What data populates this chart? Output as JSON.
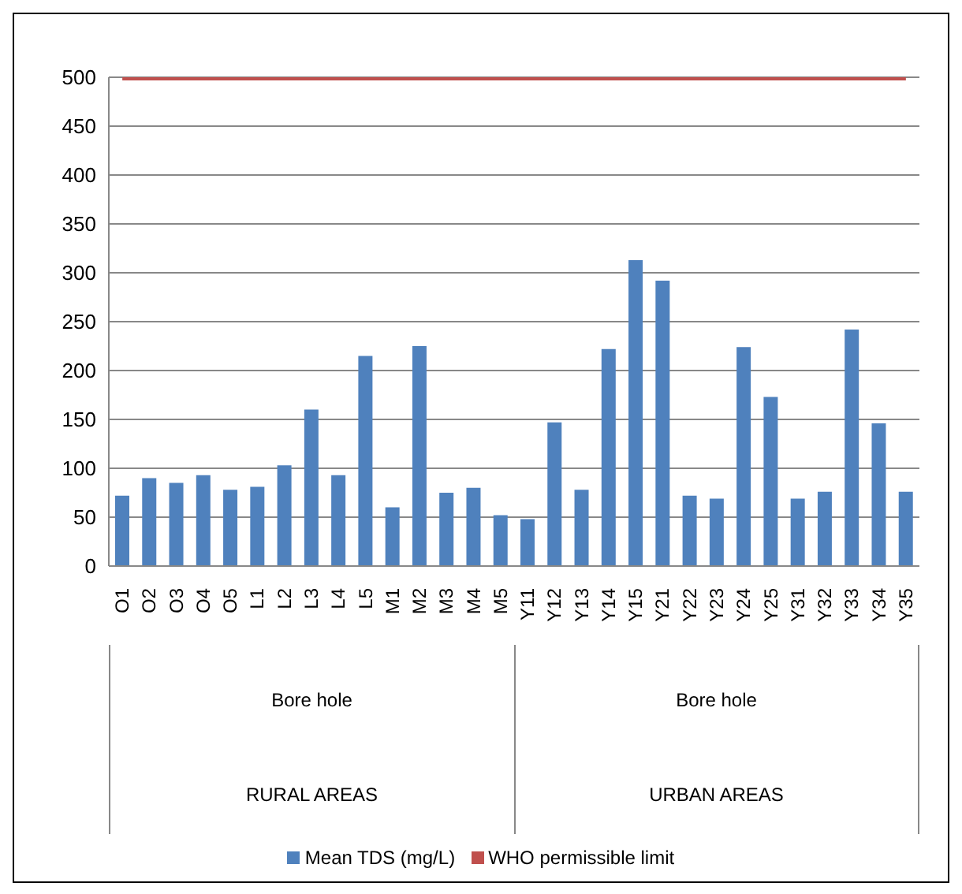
{
  "chart_data": {
    "type": "bar",
    "categories": [
      "O1",
      "O2",
      "O3",
      "O4",
      "O5",
      "L1",
      "L2",
      "L3",
      "L4",
      "L5",
      "M1",
      "M2",
      "M3",
      "M4",
      "M5",
      "Y11",
      "Y12",
      "Y13",
      "Y14",
      "Y15",
      "Y21",
      "Y22",
      "Y23",
      "Y24",
      "Y25",
      "Y31",
      "Y32",
      "Y33",
      "Y34",
      "Y35"
    ],
    "series": [
      {
        "name": "Mean TDS (mg/L)",
        "color": "#4f81bd",
        "values": [
          72,
          90,
          85,
          93,
          78,
          81,
          103,
          160,
          93,
          215,
          60,
          225,
          75,
          80,
          52,
          48,
          147,
          78,
          222,
          313,
          292,
          72,
          69,
          224,
          173,
          69,
          76,
          242,
          146,
          76
        ]
      },
      {
        "name": "WHO permissible limit",
        "type": "line",
        "color": "#c0504d",
        "values": [
          500,
          500,
          500,
          500,
          500,
          500,
          500,
          500,
          500,
          500,
          500,
          500,
          500,
          500,
          500,
          500,
          500,
          500,
          500,
          500,
          500,
          500,
          500,
          500,
          500,
          500,
          500,
          500,
          500,
          500
        ]
      }
    ],
    "annotations": [
      "Bore hole",
      "Bore hole",
      "RURAL AREAS",
      "URBAN AREAS"
    ],
    "ylim": [
      0,
      500
    ],
    "yticks": [
      0,
      50,
      100,
      150,
      200,
      250,
      300,
      350,
      400,
      450,
      500
    ],
    "grid": "y",
    "legend": "bottom",
    "marker": "none"
  }
}
